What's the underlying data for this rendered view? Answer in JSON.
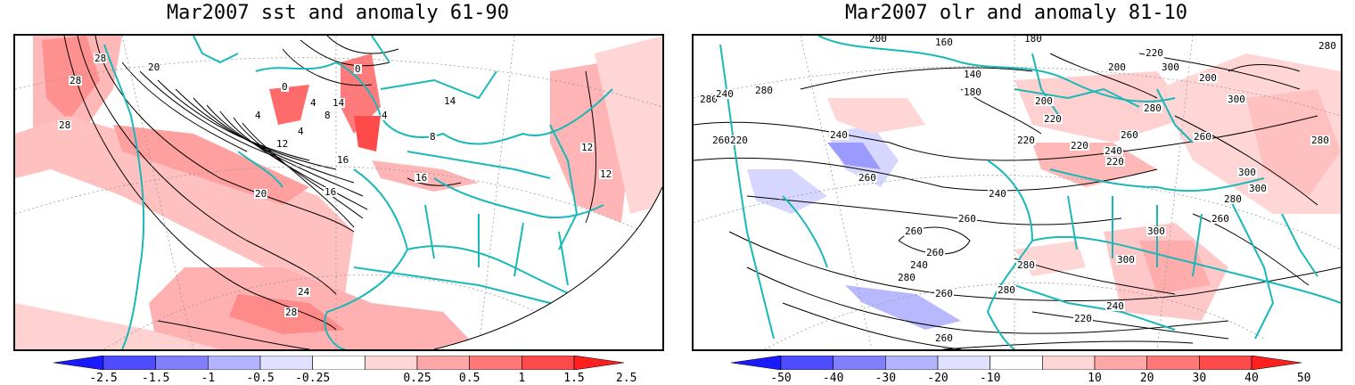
{
  "left_map": {
    "title": "Mar2007 sst and anomaly 61-90",
    "contour_labels": [
      "28",
      "20",
      "28",
      "28",
      "0",
      "0",
      "4",
      "4",
      "14",
      "8",
      "4",
      "12",
      "16",
      "16",
      "20",
      "24",
      "28",
      "8",
      "12",
      "14",
      "4",
      "16",
      "12"
    ],
    "colorbar": {
      "ticks": [
        "-2.5",
        "-1.5",
        "-1",
        "-0.5",
        "-0.25",
        "0.25",
        "0.5",
        "1",
        "1.5",
        "2.5"
      ],
      "colors": [
        "#1a1aff",
        "#4d4dff",
        "#8080ff",
        "#b3b3ff",
        "#e0e0ff",
        "#ffffff",
        "#ffd6d6",
        "#ffa6a6",
        "#ff7878",
        "#ff4a4a",
        "#ff1f1f"
      ]
    }
  },
  "right_map": {
    "title": "Mar2007 olr and anomaly 81-10",
    "contour_labels": [
      "280",
      "240",
      "260",
      "280",
      "200",
      "160",
      "180",
      "140",
      "180",
      "200",
      "200",
      "220",
      "220",
      "240",
      "220",
      "220",
      "240",
      "260",
      "260",
      "260",
      "240",
      "260",
      "260",
      "280",
      "280",
      "200",
      "220",
      "220",
      "260",
      "240",
      "260",
      "280",
      "300",
      "280",
      "300",
      "300",
      "280",
      "260",
      "300",
      "300",
      "280",
      "240",
      "220",
      "260",
      "300",
      "280"
    ],
    "colorbar": {
      "ticks": [
        "-50",
        "-40",
        "-30",
        "-20",
        "-10",
        "10",
        "20",
        "30",
        "40",
        "50"
      ],
      "colors": [
        "#1a1aff",
        "#4d4dff",
        "#8080ff",
        "#b3b3ff",
        "#e0e0ff",
        "#ffffff",
        "#ffd6d6",
        "#ffa6a6",
        "#ff7878",
        "#ff4a4a",
        "#ff1f1f"
      ]
    }
  }
}
